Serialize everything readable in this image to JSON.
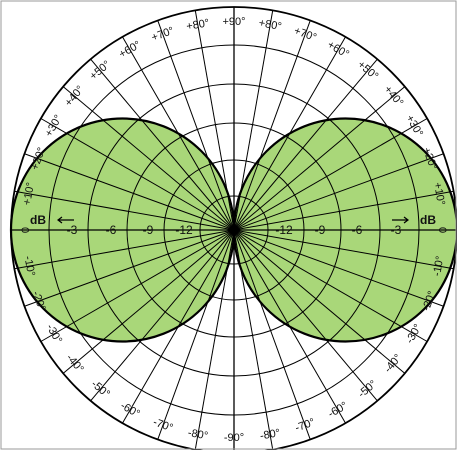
{
  "chart_data": {
    "type": "polar",
    "pattern": "figure-8 (bidirectional)",
    "colors": {
      "lobe_fill": "#a9d779",
      "lobe_stroke": "#000000",
      "grid": "#000000"
    },
    "angles_deg": [
      -90,
      -80,
      -70,
      -60,
      -50,
      -40,
      -30,
      -20,
      -10,
      0,
      10,
      20,
      30,
      40,
      50,
      60,
      70,
      80,
      90
    ],
    "angle_tick_labels": {
      "top": [
        "+90°",
        "+80°",
        "+70°",
        "+60°",
        "+50°",
        "+40°",
        "+30°",
        "+20°",
        "+10°"
      ],
      "right": [
        "+80°",
        "+70°",
        "+60°",
        "+50°",
        "+40°",
        "+30°",
        "+20°",
        "+10°",
        "0",
        "-10°",
        "-20°",
        "-30°",
        "-40°",
        "-50°",
        "-60°",
        "-70°",
        "-80°"
      ],
      "left": [
        "+80°",
        "+70°",
        "+60°",
        "+50°",
        "+40°",
        "+30°",
        "+20°",
        "+10°",
        "0",
        "-10°",
        "-20°",
        "-30°",
        "-40°",
        "-50°",
        "-60°",
        "-70°",
        "-80°"
      ],
      "bottom": "-90°"
    },
    "radial_ticks": {
      "left": [
        "-3",
        "-6",
        "-9",
        "-12"
      ],
      "right": [
        "-12",
        "-9",
        "-6",
        "-3"
      ]
    },
    "radial_unit": {
      "left": "dB",
      "right": "dB"
    },
    "radial_levels_db": [
      0,
      -3,
      -6,
      -9,
      -12
    ],
    "lobe_gain": [
      {
        "angle": 0,
        "value": 1.0
      },
      {
        "angle": 10,
        "value": 0.985
      },
      {
        "angle": 20,
        "value": 0.94
      },
      {
        "angle": 30,
        "value": 0.866
      },
      {
        "angle": 40,
        "value": 0.766
      },
      {
        "angle": 50,
        "value": 0.643
      },
      {
        "angle": 60,
        "value": 0.5
      },
      {
        "angle": 70,
        "value": 0.342
      },
      {
        "angle": 80,
        "value": 0.174
      },
      {
        "angle": 90,
        "value": 0.0
      }
    ]
  }
}
